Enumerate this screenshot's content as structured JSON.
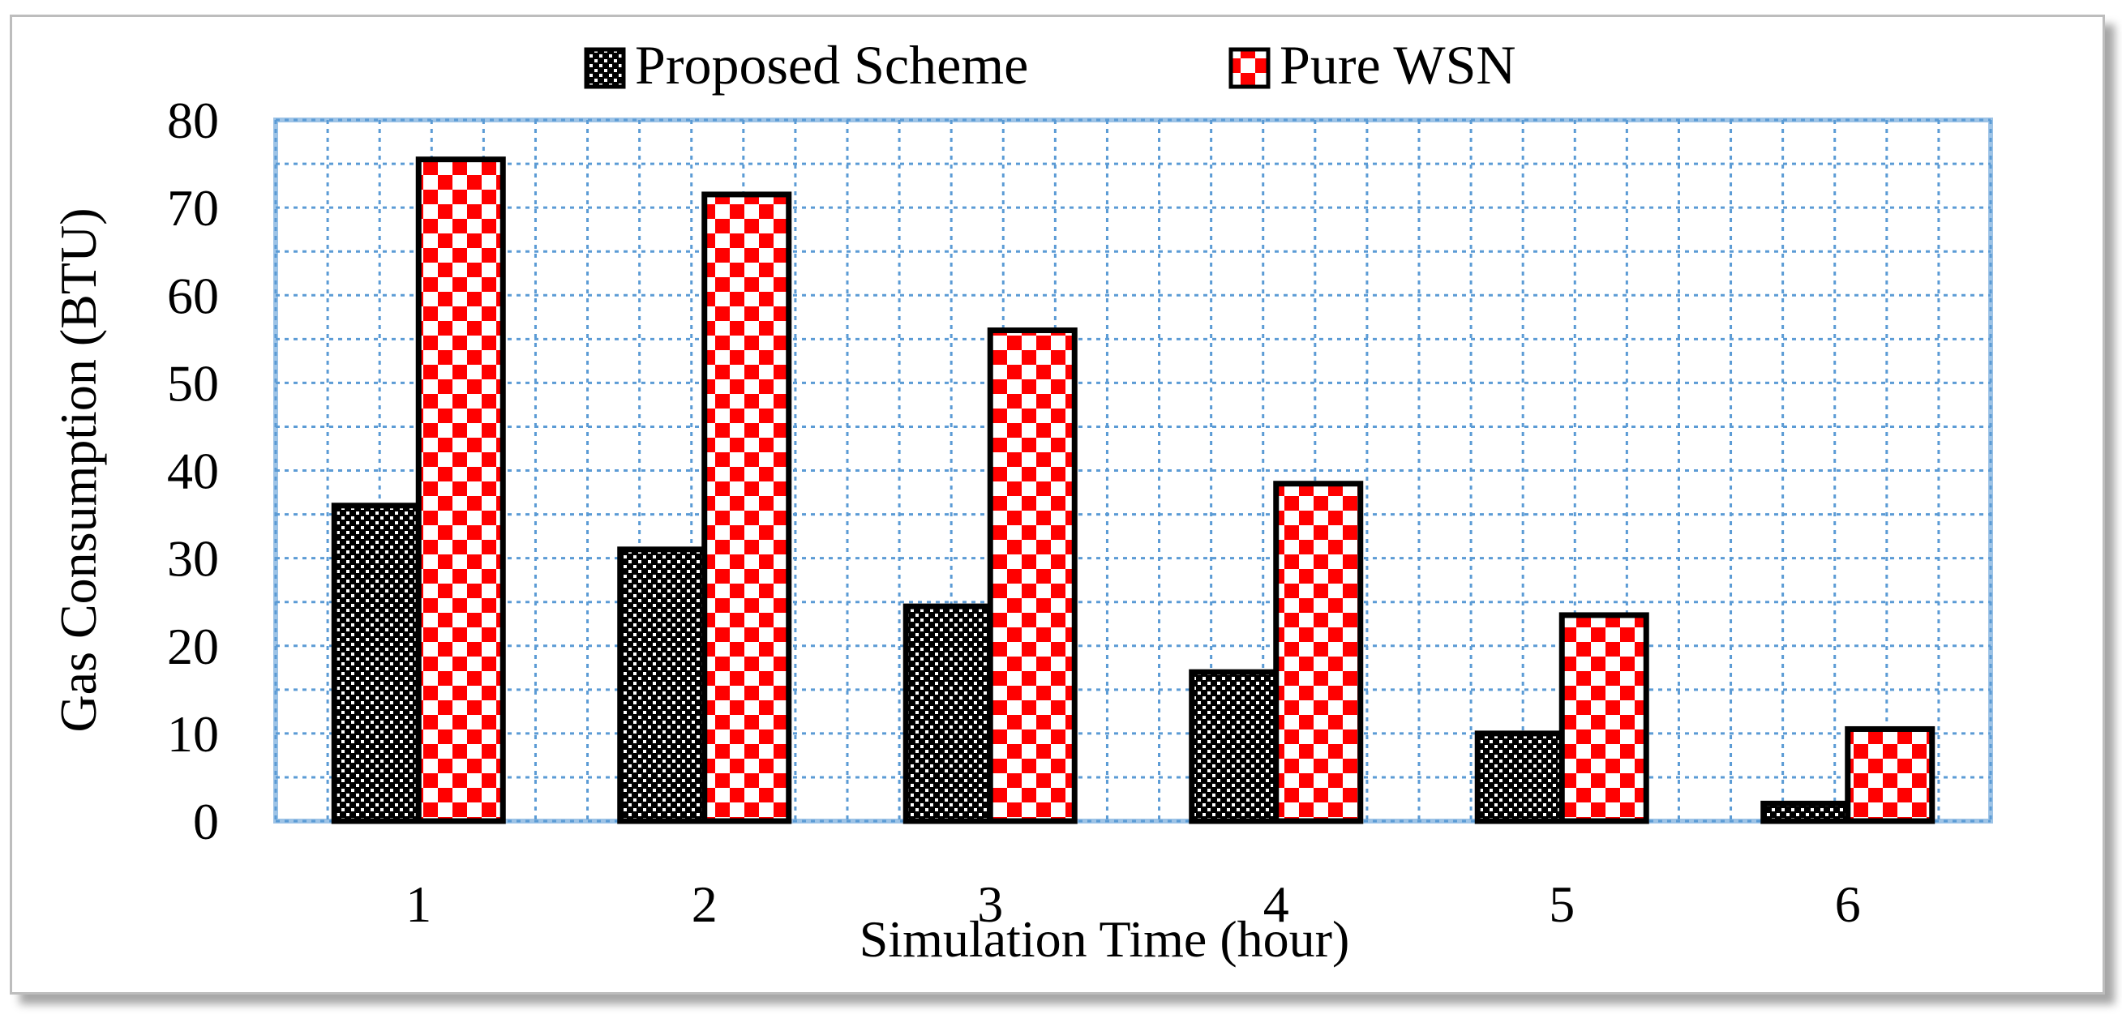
{
  "chart_data": {
    "type": "bar",
    "title": "",
    "xlabel": "Simulation Time (hour)",
    "ylabel": "Gas Consumption (BTU)",
    "categories": [
      "1",
      "2",
      "3",
      "4",
      "5",
      "6"
    ],
    "series": [
      {
        "name": "Proposed Scheme",
        "values": [
          36,
          31,
          24.5,
          17,
          10,
          2
        ],
        "pattern": "dots"
      },
      {
        "name": "Pure WSN",
        "values": [
          75.5,
          71.5,
          56,
          38.5,
          23.5,
          10.5
        ],
        "pattern": "checker"
      }
    ],
    "ylim": [
      0,
      80
    ],
    "yticks": [
      "0",
      "10",
      "20",
      "30",
      "40",
      "50",
      "60",
      "70",
      "80"
    ],
    "grid": true,
    "legend_position": "top-center",
    "colors": {
      "proposed_fill": "#000000",
      "proposed_dots": "#ffffff",
      "wsn_red": "#ff0000",
      "wsn_white": "#ffffff",
      "grid": "#5b9bd5",
      "plot_border": "#9dc3e6",
      "bar_outline": "#000000"
    }
  }
}
